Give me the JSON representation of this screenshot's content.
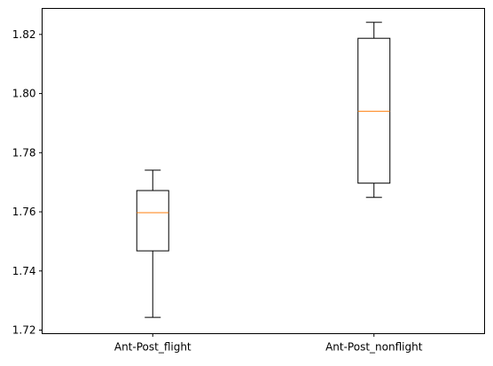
{
  "chart_data": {
    "type": "boxplot",
    "title": "",
    "xlabel": "",
    "ylabel": "",
    "categories": [
      "Ant-Post_flight",
      "Ant-Post_nonflight"
    ],
    "boxes": [
      {
        "whisker_low": 1.7243,
        "q1": 1.7468,
        "median": 1.7597,
        "q3": 1.7672,
        "whisker_high": 1.7741
      },
      {
        "whisker_low": 1.7649,
        "q1": 1.7697,
        "median": 1.794,
        "q3": 1.8187,
        "whisker_high": 1.8241
      }
    ],
    "ylim": [
      1.7188,
      1.8288
    ],
    "yticks": [
      "1.72",
      "1.74",
      "1.76",
      "1.78",
      "1.80",
      "1.82"
    ],
    "grid": false,
    "colors": {
      "box": "#000000",
      "median": "#ff7f0e",
      "axes": "#000000"
    }
  }
}
